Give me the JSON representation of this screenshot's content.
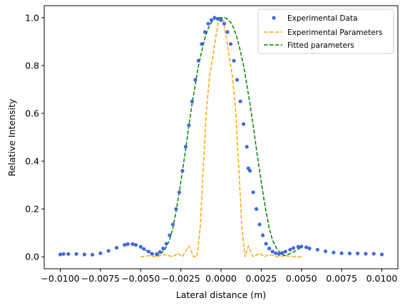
{
  "colors": {
    "experimental_data": "#4169e1",
    "experimental_parameters": "#ffa500",
    "fitted_parameters": "#008000",
    "axes": "#000000",
    "legend_border": "#cccccc"
  },
  "chart_data": {
    "type": "line",
    "title": "",
    "xlabel": "Lateral distance (m)",
    "ylabel": "Relative Intensity",
    "xlim": [
      -0.011,
      0.011
    ],
    "ylim": [
      -0.05,
      1.05
    ],
    "grid": false,
    "legend_placement": "top-right",
    "x_ticks": [
      -0.01,
      -0.0075,
      -0.005,
      -0.0025,
      0,
      0.0025,
      0.005,
      0.0075,
      0.01
    ],
    "x_tick_labels": [
      "−0.0100",
      "−0.0075",
      "−0.0050",
      "−0.0025",
      "0.0000",
      "0.0025",
      "0.0050",
      "0.0075",
      "0.0100"
    ],
    "y_ticks": [
      0,
      0.2,
      0.4,
      0.6,
      0.8,
      1.0
    ],
    "y_tick_labels": [
      "0.0",
      "0.2",
      "0.4",
      "0.6",
      "0.8",
      "1.0"
    ],
    "series": [
      {
        "name": "Experimental Data",
        "style": "markers",
        "x": [
          -0.01,
          -0.0098,
          -0.0095,
          -0.009,
          -0.0085,
          -0.008,
          -0.0075,
          -0.007,
          -0.0065,
          -0.006,
          -0.0058,
          -0.0055,
          -0.0053,
          -0.005,
          -0.0048,
          -0.0045,
          -0.0043,
          -0.004,
          -0.0038,
          -0.0036,
          -0.0034,
          -0.0032,
          -0.003,
          -0.0028,
          -0.0026,
          -0.0024,
          -0.0022,
          -0.002,
          -0.0018,
          -0.0016,
          -0.0014,
          -0.0012,
          -0.001,
          -0.0008,
          -0.0006,
          -0.0004,
          -0.0002,
          0,
          0.0002,
          0.0004,
          0.0006,
          0.0008,
          0.001,
          0.0012,
          0.0014,
          0.0016,
          0.0017,
          0.0018,
          0.002,
          0.0022,
          0.0024,
          0.0026,
          0.0028,
          0.003,
          0.0032,
          0.0034,
          0.0036,
          0.0038,
          0.004,
          0.0043,
          0.0045,
          0.0048,
          0.005,
          0.0053,
          0.0055,
          0.006,
          0.0065,
          0.007,
          0.0075,
          0.008,
          0.0085,
          0.009,
          0.0095,
          0.01
        ],
        "y": [
          0.01,
          0.012,
          0.012,
          0.012,
          0.01,
          0.009,
          0.015,
          0.025,
          0.038,
          0.05,
          0.053,
          0.053,
          0.05,
          0.042,
          0.033,
          0.022,
          0.013,
          0.012,
          0.02,
          0.035,
          0.055,
          0.09,
          0.135,
          0.2,
          0.27,
          0.36,
          0.46,
          0.55,
          0.65,
          0.74,
          0.82,
          0.89,
          0.94,
          0.975,
          0.99,
          1.0,
          0.995,
          0.99,
          0.975,
          0.94,
          0.89,
          0.82,
          0.74,
          0.65,
          0.555,
          0.46,
          0.37,
          0.36,
          0.27,
          0.2,
          0.135,
          0.09,
          0.055,
          0.035,
          0.022,
          0.015,
          0.012,
          0.016,
          0.022,
          0.03,
          0.037,
          0.042,
          0.043,
          0.04,
          0.035,
          0.03,
          0.023,
          0.018,
          0.015,
          0.014,
          0.014,
          0.013,
          0.013,
          0.01
        ]
      },
      {
        "name": "Experimental Parameters",
        "style": "dashed",
        "x": [
          -0.005,
          -0.0045,
          -0.004,
          -0.0035,
          -0.003,
          -0.0027,
          -0.0024,
          -0.002,
          -0.0017,
          -0.0015,
          -0.0013,
          -0.0011,
          -0.0009,
          -0.0007,
          -0.0005,
          -0.0003,
          -0.00015,
          0,
          0.00015,
          0.0003,
          0.0005,
          0.0007,
          0.0009,
          0.0011,
          0.0013,
          0.0015,
          0.0017,
          0.002,
          0.0024,
          0.0027,
          0.003,
          0.0035,
          0.004,
          0.0045,
          0.005
        ],
        "y": [
          0.0,
          0.005,
          0.0,
          0.01,
          0.0,
          0.015,
          0.0,
          0.045,
          0.0,
          0.0,
          0.12,
          0.38,
          0.62,
          0.76,
          0.84,
          0.93,
          0.985,
          1.0,
          0.985,
          0.93,
          0.84,
          0.76,
          0.62,
          0.38,
          0.12,
          0.0,
          0.045,
          0.0,
          0.015,
          0.0,
          0.01,
          0.0,
          0.005,
          0.0,
          0.0
        ]
      },
      {
        "name": "Fitted parameters",
        "style": "dashed",
        "x": [
          -0.005,
          -0.0045,
          -0.004,
          -0.0038,
          -0.0035,
          -0.0032,
          -0.003,
          -0.0028,
          -0.0026,
          -0.0024,
          -0.0022,
          -0.002,
          -0.0018,
          -0.0016,
          -0.0014,
          -0.0012,
          -0.001,
          -0.0008,
          -0.0006,
          -0.0004,
          -0.0002,
          0,
          0.0002,
          0.0004,
          0.0006,
          0.0008,
          0.001,
          0.0012,
          0.0014,
          0.0016,
          0.0018,
          0.002,
          0.0022,
          0.0024,
          0.0026,
          0.0028,
          0.003,
          0.0032,
          0.0035,
          0.0038,
          0.004,
          0.0045,
          0.005
        ],
        "y": [
          0.04,
          0.02,
          0.005,
          0.01,
          0.03,
          0.07,
          0.12,
          0.19,
          0.27,
          0.36,
          0.45,
          0.55,
          0.64,
          0.72,
          0.8,
          0.86,
          0.915,
          0.955,
          0.98,
          0.995,
          1.0,
          1.0,
          1.0,
          0.995,
          0.98,
          0.955,
          0.915,
          0.86,
          0.8,
          0.72,
          0.64,
          0.55,
          0.45,
          0.36,
          0.27,
          0.19,
          0.12,
          0.07,
          0.03,
          0.01,
          0.005,
          0.02,
          0.04
        ]
      }
    ]
  }
}
